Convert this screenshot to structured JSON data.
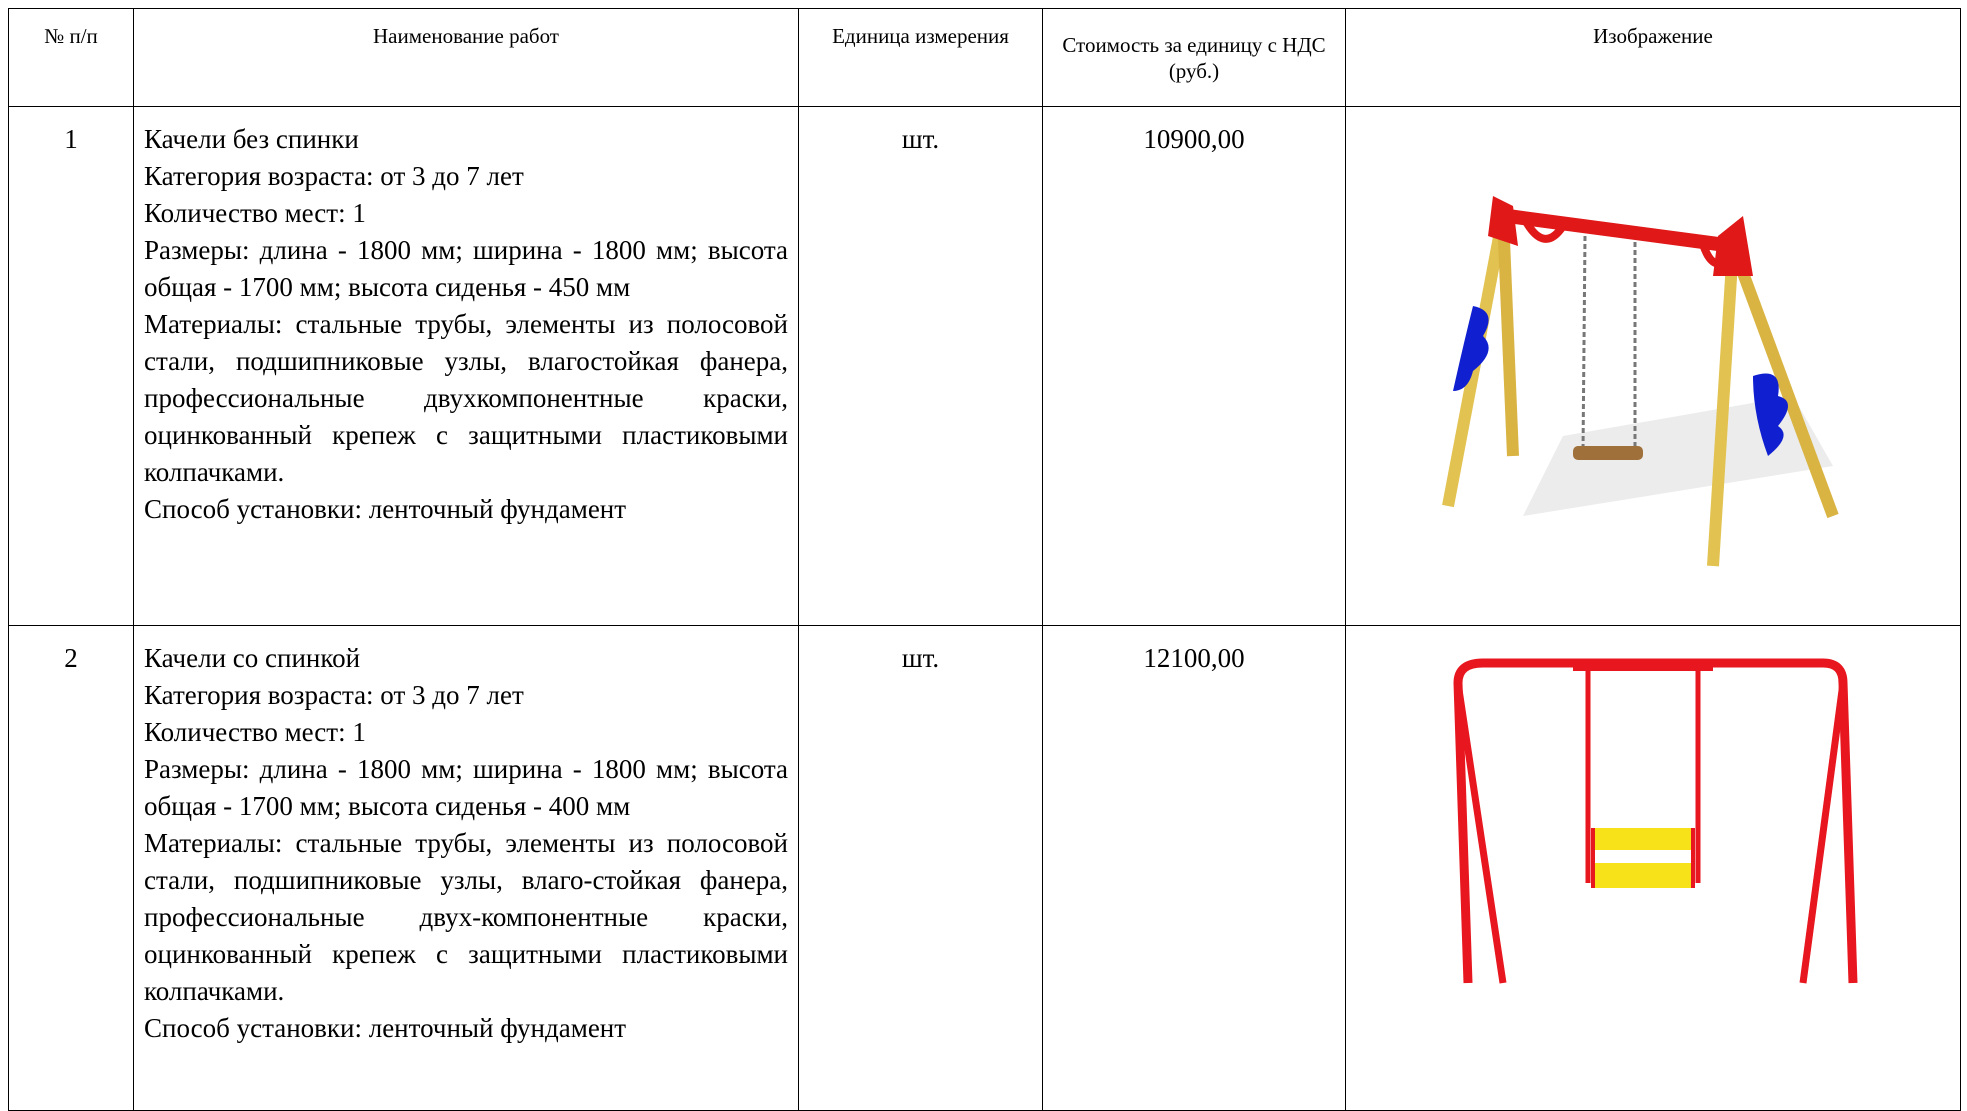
{
  "table": {
    "header": [
      "№ п/п",
      "Наименование работ",
      "Единица измерения",
      "Стоимость за единицу с НДС (руб.)",
      "Изображение"
    ],
    "rows": [
      {
        "number": "1",
        "lines": [
          "Качели без спинки",
          "Категория возраста: от 3 до 7 лет",
          "Количество мест: 1",
          "Размеры: длина - 1800 мм; ширина - 1800 мм; высота общая - 1700 мм; высота сиденья - 450 мм",
          "Материалы: стальные трубы, элементы из полосовой стали, подшипниковые узлы, влагостойкая фанера, профессиональные двухкомпонентные краски, оцинкованный крепеж с защитными пластиковыми колпачками.",
          "Способ установки: ленточный фундамент"
        ],
        "unit": "шт.",
        "price": "10900,00"
      },
      {
        "number": "2",
        "lines": [
          "Качели со спинкой",
          "Категория возраста: от 3 до 7 лет",
          "Количество мест: 1",
          "Размеры: длина - 1800 мм; ширина - 1800 мм; высота общая - 1700 мм; высота сиденья - 400 мм",
          "Материалы: стальные трубы, элементы из полосовой стали, подшипниковые узлы, влаго-стойкая фанера, профессиональные двух-компонентные краски, оцинкованный крепеж с защитными пластиковыми колпачками.",
          "Способ установки: ленточный фундамент"
        ],
        "unit": "шт.",
        "price": "12100,00"
      }
    ]
  }
}
